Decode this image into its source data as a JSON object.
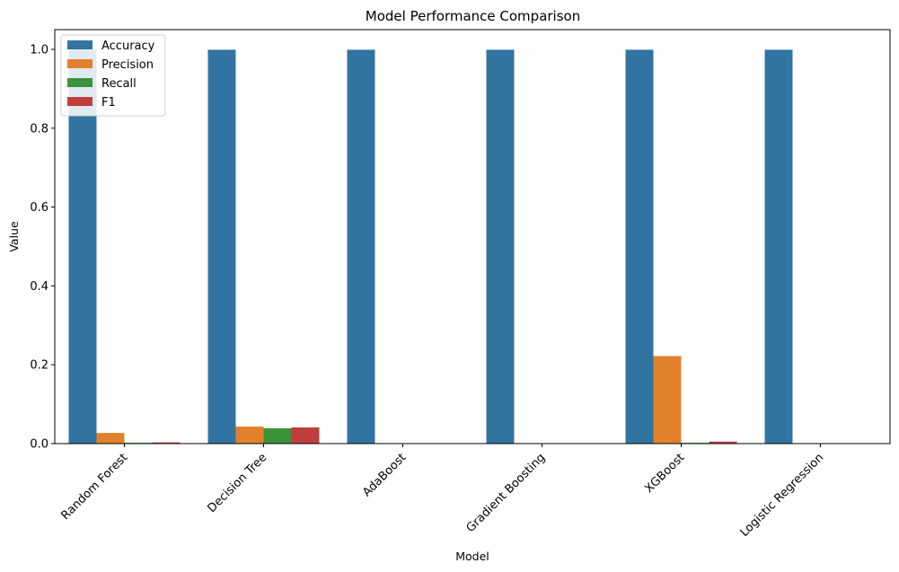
{
  "chart_data": {
    "type": "bar",
    "title": "Model Performance Comparison",
    "xlabel": "Model",
    "ylabel": "Value",
    "ylim": [
      0,
      1.05
    ],
    "yticks": [
      "0.0",
      "0.2",
      "0.4",
      "0.6",
      "0.8",
      "1.0"
    ],
    "categories": [
      "Random Forest",
      "Decision Tree",
      "AdaBoost",
      "Gradient Boosting",
      "XGBoost",
      "Logistic Regression"
    ],
    "series": [
      {
        "name": "Accuracy",
        "color": "#3274a1",
        "values": [
          0.999,
          0.999,
          0.999,
          0.999,
          0.999,
          0.999
        ]
      },
      {
        "name": "Precision",
        "color": "#e1812c",
        "values": [
          0.027,
          0.043,
          0.0,
          0.0,
          0.222,
          0.0
        ]
      },
      {
        "name": "Recall",
        "color": "#3a923a",
        "values": [
          0.002,
          0.039,
          0.0,
          0.0,
          0.002,
          0.0
        ]
      },
      {
        "name": "F1",
        "color": "#c03d3e",
        "values": [
          0.003,
          0.041,
          0.0,
          0.0,
          0.005,
          0.0
        ]
      }
    ],
    "grid": false,
    "legend_position": "top-left"
  }
}
